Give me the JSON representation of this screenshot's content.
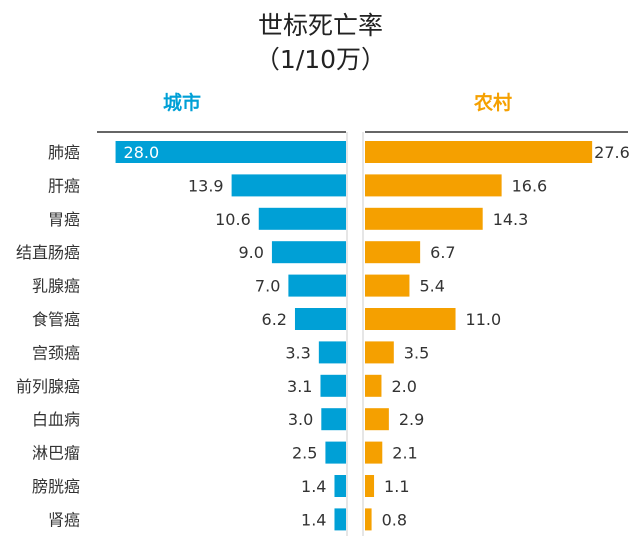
{
  "chart_data": {
    "type": "bar",
    "orientation": "horizontal-butterfly",
    "title": "世标死亡率",
    "subtitle": "（1/10万）",
    "categories": [
      "肺癌",
      "肝癌",
      "胃癌",
      "结直肠癌",
      "乳腺癌",
      "食管癌",
      "宫颈癌",
      "前列腺癌",
      "白血病",
      "淋巴瘤",
      "膀胱癌",
      "肾癌"
    ],
    "series": [
      {
        "name": "城市",
        "color": "#00A0D6",
        "values": [
          28.0,
          13.9,
          10.6,
          9.0,
          7.0,
          6.2,
          3.3,
          3.1,
          3.0,
          2.5,
          1.4,
          1.4
        ]
      },
      {
        "name": "农村",
        "color": "#F5A000",
        "values": [
          27.6,
          16.6,
          14.3,
          6.7,
          5.4,
          11.0,
          3.5,
          2.0,
          2.9,
          2.1,
          1.1,
          0.8
        ]
      }
    ],
    "xlim": [
      0,
      28.5
    ],
    "grid": false
  }
}
